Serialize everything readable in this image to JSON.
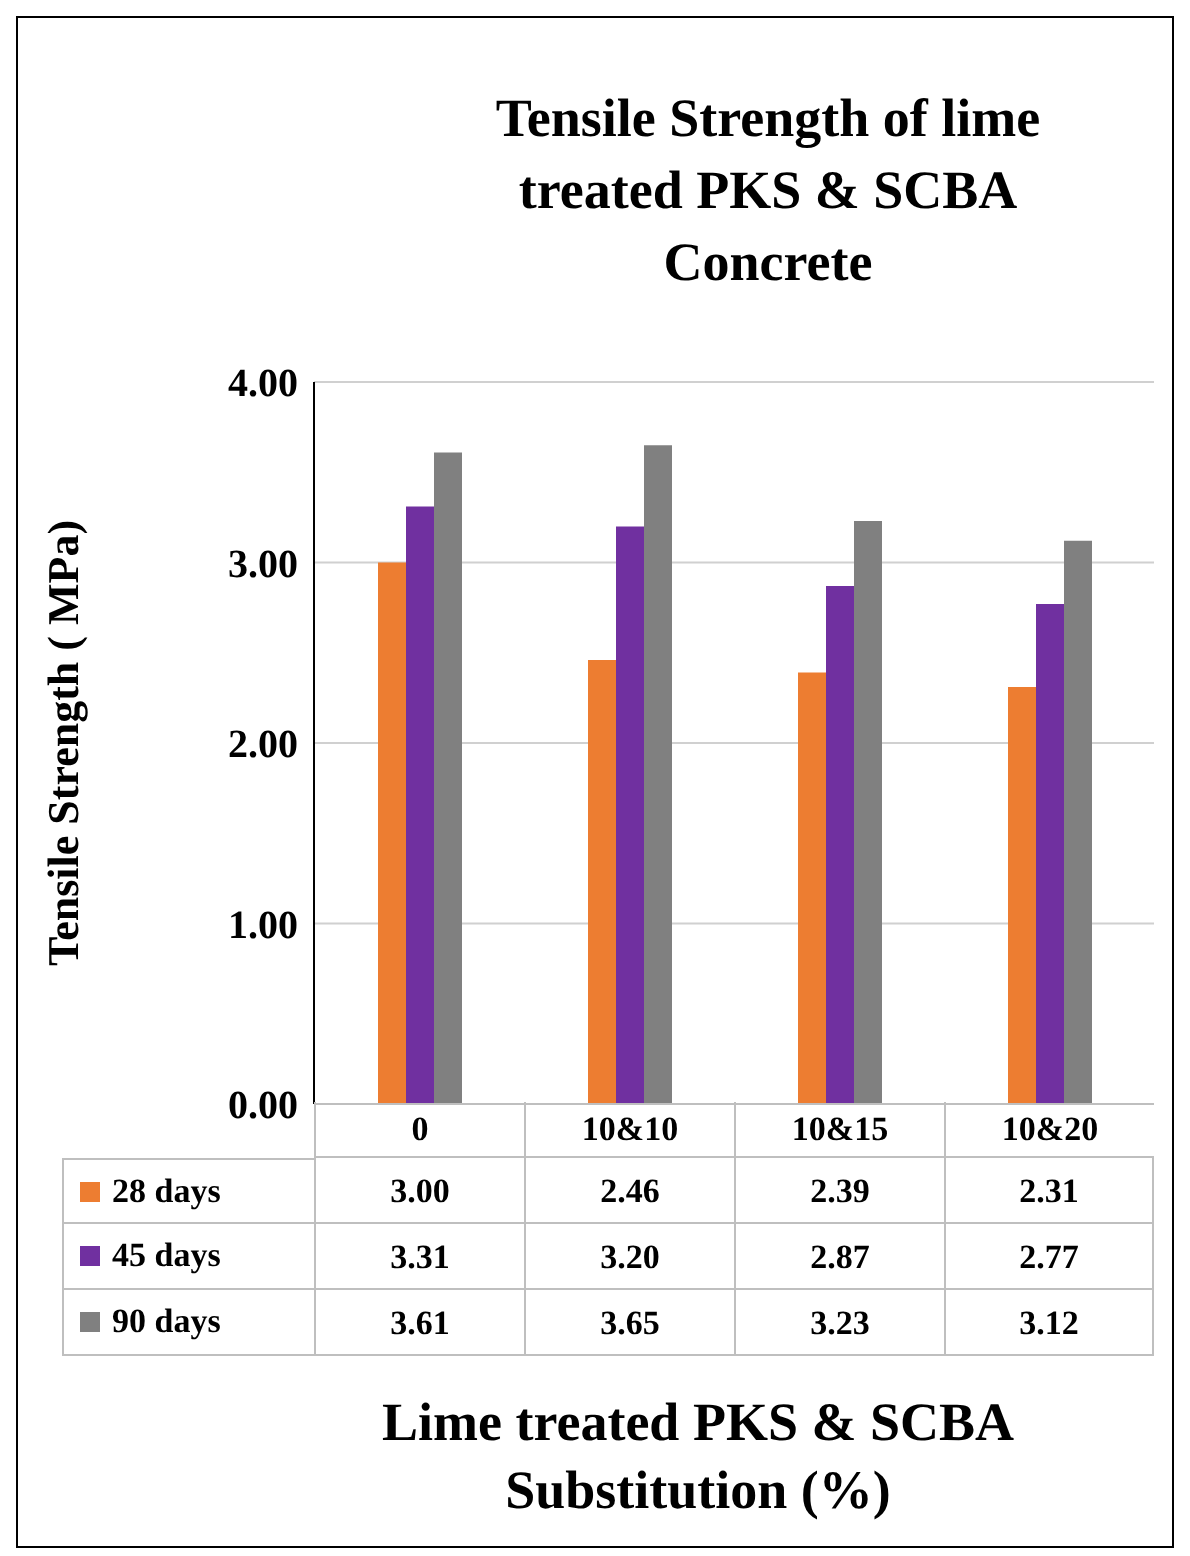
{
  "chart_data": {
    "type": "bar",
    "title": "Tensile Strength of lime treated PKS & SCBA Concrete",
    "xlabel": "Lime treated PKS & SCBA Substitution (%)",
    "ylabel": "Tensile Strength ( MPa)",
    "categories": [
      "0",
      "10&10",
      "10&15",
      "10&20"
    ],
    "series": [
      {
        "name": "28 days",
        "color": "#ed7d31",
        "values": [
          3.0,
          2.46,
          2.39,
          2.31
        ],
        "value_labels": [
          "3.00",
          "2.46",
          "2.39",
          "2.31"
        ]
      },
      {
        "name": "45 days",
        "color": "#7030a0",
        "values": [
          3.31,
          3.2,
          2.87,
          2.77
        ],
        "value_labels": [
          "3.31",
          "3.20",
          "2.87",
          "2.77"
        ]
      },
      {
        "name": "90 days",
        "color": "#808080",
        "values": [
          3.61,
          3.65,
          3.23,
          3.12
        ],
        "value_labels": [
          "3.61",
          "3.65",
          "3.23",
          "3.12"
        ]
      }
    ],
    "ylim": [
      0,
      4
    ],
    "yticks": [
      {
        "value": 0,
        "label": "0.00"
      },
      {
        "value": 1,
        "label": "1.00"
      },
      {
        "value": 2,
        "label": "2.00"
      },
      {
        "value": 3,
        "label": "3.00"
      },
      {
        "value": 4,
        "label": "4.00"
      }
    ],
    "grid": "y",
    "legend": "bottom"
  }
}
